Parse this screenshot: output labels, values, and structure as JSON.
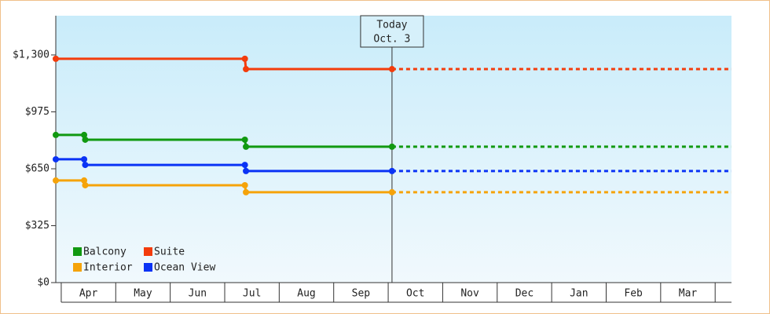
{
  "chart_data": {
    "type": "line",
    "xlim": [
      -0.1,
      12.3
    ],
    "xticks": [
      {
        "value": 0.5,
        "label": "Apr"
      },
      {
        "value": 1.5,
        "label": "May"
      },
      {
        "value": 2.5,
        "label": "Jun"
      },
      {
        "value": 3.5,
        "label": "Jul"
      },
      {
        "value": 4.5,
        "label": "Aug"
      },
      {
        "value": 5.5,
        "label": "Sep"
      },
      {
        "value": 6.5,
        "label": "Oct"
      },
      {
        "value": 7.5,
        "label": "Nov"
      },
      {
        "value": 8.5,
        "label": "Dec"
      },
      {
        "value": 9.5,
        "label": "Jan"
      },
      {
        "value": 10.5,
        "label": "Feb"
      },
      {
        "value": 11.5,
        "label": "Mar"
      }
    ],
    "ylim": [
      0,
      1524
    ],
    "yticks": [
      {
        "value": 0,
        "label": "$0"
      },
      {
        "value": 325,
        "label": "$325"
      },
      {
        "value": 650,
        "label": "$650"
      },
      {
        "value": 975,
        "label": "$975"
      },
      {
        "value": 1300,
        "label": "$1,300"
      }
    ],
    "grid": false,
    "legend": "bottom-left",
    "projected": true,
    "today": {
      "label": "Today",
      "date": "Oct. 3",
      "x": 6.07
    },
    "series": [
      {
        "name": "Balcony",
        "color": "#119911",
        "x": [
          -0.1,
          0.42,
          0.44,
          3.37,
          3.39,
          6.07
        ],
        "values": [
          843,
          843,
          816,
          816,
          776,
          776
        ]
      },
      {
        "name": "Suite",
        "color": "#f33c0c",
        "x": [
          -0.1,
          3.37,
          3.39,
          6.07
        ],
        "values": [
          1278,
          1278,
          1219,
          1219
        ]
      },
      {
        "name": "Interior",
        "color": "#f5a30a",
        "x": [
          -0.1,
          0.42,
          0.44,
          3.37,
          3.39,
          6.07
        ],
        "values": [
          583,
          583,
          556,
          556,
          516,
          516
        ]
      },
      {
        "name": "Ocean View",
        "color": "#0a33f5",
        "x": [
          -0.1,
          0.42,
          0.44,
          3.37,
          3.39,
          6.07
        ],
        "values": [
          704,
          704,
          672,
          672,
          637,
          637
        ]
      }
    ]
  }
}
